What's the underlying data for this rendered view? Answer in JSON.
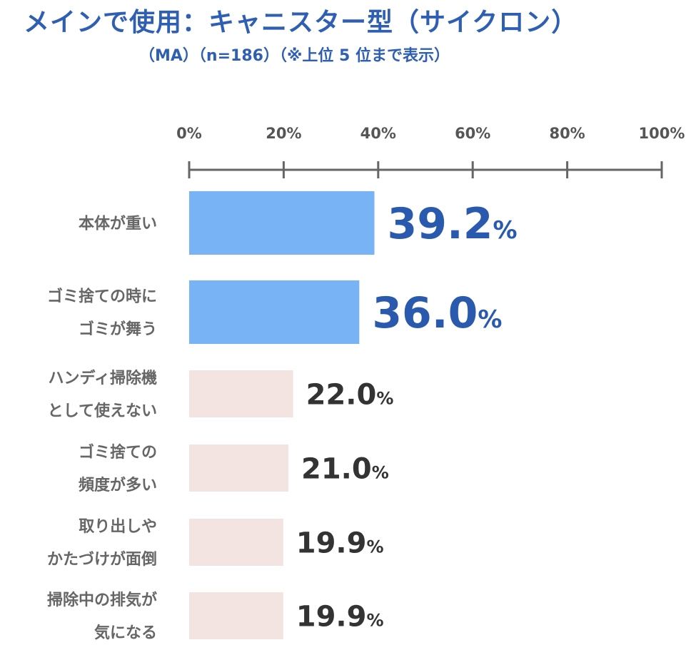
{
  "chart_data": {
    "type": "bar",
    "orientation": "horizontal",
    "title": "メインで使用：キャニスター型（サイクロン）",
    "subtitle": "（MA）（n=186）（※上位 5 位まで表示）",
    "categories": [
      [
        "本体が重い"
      ],
      [
        "ゴミ捨ての時に",
        "ゴミが舞う"
      ],
      [
        "ハンディ掃除機",
        "として使えない"
      ],
      [
        "ゴミ捨ての",
        "頻度が多い"
      ],
      [
        "取り出しや",
        "かたづけが面倒"
      ],
      [
        "掃除中の排気が",
        "気になる"
      ]
    ],
    "values": [
      39.2,
      36.0,
      22.0,
      21.0,
      19.9,
      19.9
    ],
    "value_labels": [
      "39.2",
      "36.0",
      "22.0",
      "21.0",
      "19.9",
      "19.9"
    ],
    "unit": "%",
    "highlight_top": 2,
    "xlim": [
      0,
      100
    ],
    "ticks": [
      "0%",
      "20%",
      "40%",
      "60%",
      "80%",
      "100%"
    ],
    "tick_values": [
      0,
      20,
      40,
      60,
      80,
      100
    ],
    "colors": {
      "highlight_bar": "#78b4f5",
      "normal_bar": "#f3e3e1",
      "highlight_text": "#2a5aad",
      "normal_text": "#333333",
      "axis": "#666666",
      "title": "#2f5fb3"
    }
  }
}
